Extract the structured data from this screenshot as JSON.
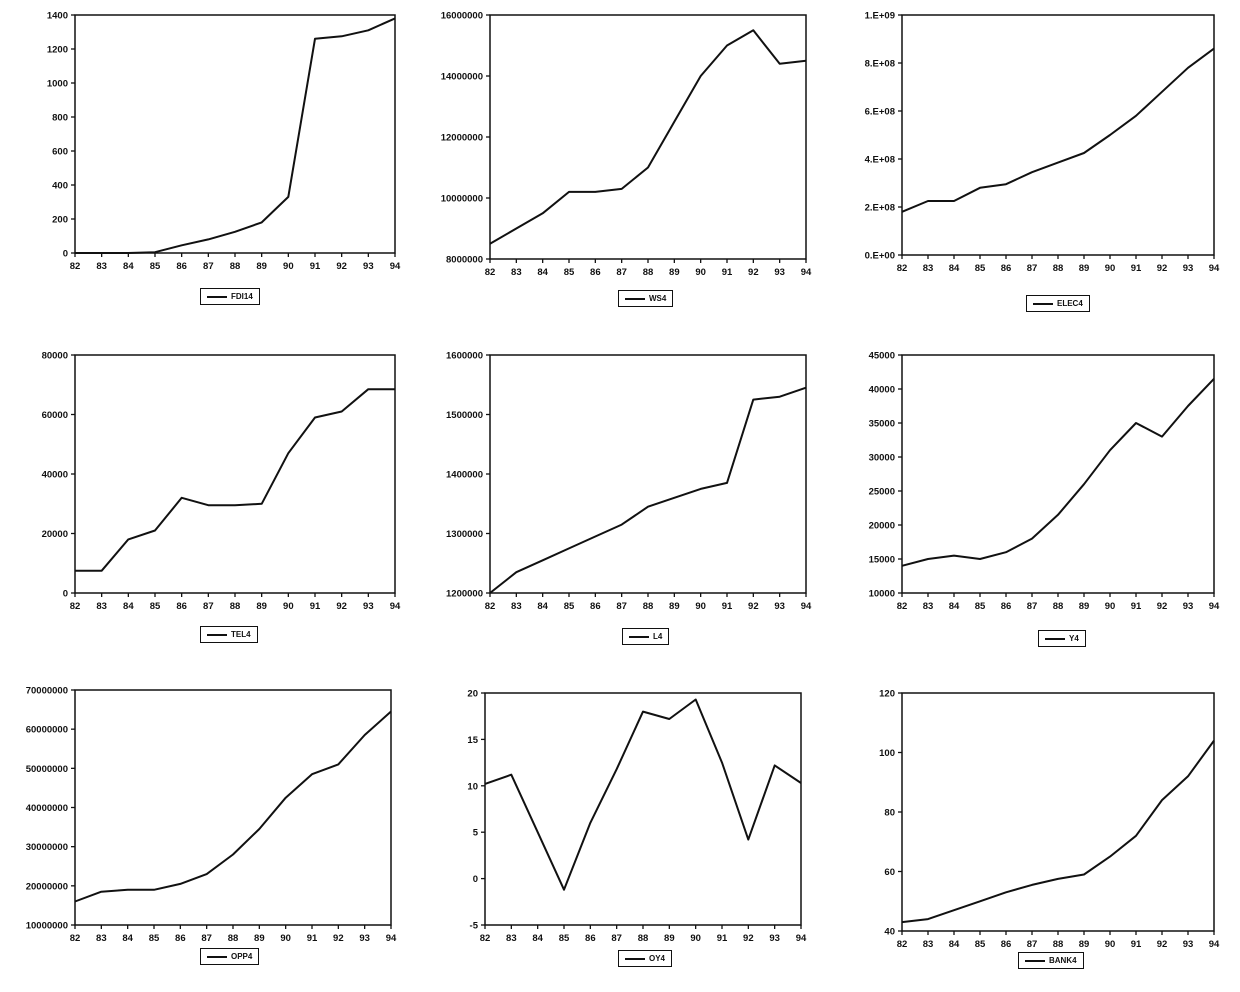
{
  "chart_data": [
    {
      "type": "line",
      "series": [
        {
          "name": "FDI14",
          "values": [
            0,
            0,
            0,
            5,
            45,
            80,
            125,
            180,
            330,
            1260,
            1275,
            1310,
            1380
          ]
        }
      ],
      "x": [
        "82",
        "83",
        "84",
        "85",
        "86",
        "87",
        "88",
        "89",
        "90",
        "91",
        "92",
        "93",
        "94"
      ],
      "ylim": [
        0,
        1400
      ],
      "yticks": [
        "0",
        "200",
        "400",
        "600",
        "800",
        "1000",
        "1200",
        "1400"
      ],
      "title": "",
      "xlabel": "",
      "ylabel": "",
      "legend": "bottom-left",
      "grid": false
    },
    {
      "type": "line",
      "series": [
        {
          "name": "WS4",
          "values": [
            8500000,
            9000000,
            9500000,
            10200000,
            10200000,
            10300000,
            11000000,
            12500000,
            14000000,
            15000000,
            15500000,
            14400000,
            14500000
          ]
        }
      ],
      "x": [
        "82",
        "83",
        "84",
        "85",
        "86",
        "87",
        "88",
        "89",
        "90",
        "91",
        "92",
        "93",
        "94"
      ],
      "ylim": [
        8000000,
        16000000
      ],
      "yticks": [
        "8000000",
        "10000000",
        "12000000",
        "14000000",
        "16000000"
      ],
      "title": "",
      "xlabel": "",
      "ylabel": "",
      "legend": "bottom-center",
      "grid": false
    },
    {
      "type": "line",
      "series": [
        {
          "name": "ELEC4",
          "values": [
            180000000,
            225000000,
            225000000,
            280000000,
            295000000,
            345000000,
            385000000,
            425000000,
            500000000,
            580000000,
            680000000,
            780000000,
            860000000
          ]
        }
      ],
      "x": [
        "82",
        "83",
        "84",
        "85",
        "86",
        "87",
        "88",
        "89",
        "90",
        "91",
        "92",
        "93",
        "94"
      ],
      "ylim": [
        0,
        1000000000
      ],
      "yticks": [
        "0.E+00",
        "2.E+08",
        "4.E+08",
        "6.E+08",
        "8.E+08",
        "1.E+09"
      ],
      "title": "",
      "xlabel": "",
      "ylabel": "",
      "legend": "bottom-center",
      "grid": false
    },
    {
      "type": "line",
      "series": [
        {
          "name": "TEL4",
          "values": [
            7500,
            7500,
            18000,
            21000,
            32000,
            29500,
            29500,
            30000,
            47000,
            59000,
            61000,
            68500,
            68500
          ]
        }
      ],
      "x": [
        "82",
        "83",
        "84",
        "85",
        "86",
        "87",
        "88",
        "89",
        "90",
        "91",
        "92",
        "93",
        "94"
      ],
      "ylim": [
        0,
        80000
      ],
      "yticks": [
        "0",
        "20000",
        "40000",
        "60000",
        "80000"
      ],
      "title": "",
      "xlabel": "",
      "ylabel": "",
      "legend": "bottom-center",
      "grid": false
    },
    {
      "type": "line",
      "series": [
        {
          "name": "L4",
          "values": [
            1200000,
            1235000,
            1255000,
            1275000,
            1295000,
            1315000,
            1345000,
            1360000,
            1375000,
            1385000,
            1525000,
            1530000,
            1545000
          ]
        }
      ],
      "x": [
        "82",
        "83",
        "84",
        "85",
        "86",
        "87",
        "88",
        "89",
        "90",
        "91",
        "92",
        "93",
        "94"
      ],
      "ylim": [
        1200000,
        1600000
      ],
      "yticks": [
        "1200000",
        "1300000",
        "1400000",
        "1500000",
        "1600000"
      ],
      "title": "",
      "xlabel": "",
      "ylabel": "",
      "legend": "bottom-center",
      "grid": false
    },
    {
      "type": "line",
      "series": [
        {
          "name": "Y4",
          "values": [
            14000,
            15000,
            15500,
            15000,
            16000,
            18000,
            21500,
            26000,
            31000,
            35000,
            33000,
            37500,
            41500
          ]
        }
      ],
      "x": [
        "82",
        "83",
        "84",
        "85",
        "86",
        "87",
        "88",
        "89",
        "90",
        "91",
        "92",
        "93",
        "94"
      ],
      "ylim": [
        10000,
        45000
      ],
      "yticks": [
        "10000",
        "15000",
        "20000",
        "25000",
        "30000",
        "35000",
        "40000",
        "45000"
      ],
      "title": "",
      "xlabel": "",
      "ylabel": "",
      "legend": "bottom-center",
      "grid": false
    },
    {
      "type": "line",
      "series": [
        {
          "name": "OPP4",
          "values": [
            16000000,
            18500000,
            19000000,
            19000000,
            20500000,
            23000000,
            28000000,
            34500000,
            42500000,
            48500000,
            51000000,
            58500000,
            64500000
          ]
        }
      ],
      "x": [
        "82",
        "83",
        "84",
        "85",
        "86",
        "87",
        "88",
        "89",
        "90",
        "91",
        "92",
        "93",
        "94"
      ],
      "ylim": [
        10000000,
        70000000
      ],
      "yticks": [
        "10000000",
        "20000000",
        "30000000",
        "40000000",
        "50000000",
        "60000000",
        "70000000"
      ],
      "title": "",
      "xlabel": "",
      "ylabel": "",
      "legend": "bottom-left",
      "grid": false
    },
    {
      "type": "line",
      "series": [
        {
          "name": "OY4",
          "values": [
            10.2,
            11.2,
            5,
            -1.2,
            6,
            11.8,
            18,
            17.2,
            19.3,
            12.5,
            4.2,
            12.2,
            10.3
          ]
        }
      ],
      "x": [
        "82",
        "83",
        "84",
        "85",
        "86",
        "87",
        "88",
        "89",
        "90",
        "91",
        "92",
        "93",
        "94"
      ],
      "ylim": [
        -5,
        20
      ],
      "yticks": [
        "-5",
        "0",
        "5",
        "10",
        "15",
        "20"
      ],
      "title": "",
      "xlabel": "",
      "ylabel": "",
      "legend": "bottom-center",
      "grid": false
    },
    {
      "type": "line",
      "series": [
        {
          "name": "BANK4",
          "values": [
            43,
            44,
            47,
            50,
            53,
            55.5,
            57.5,
            59,
            65,
            72,
            84,
            92,
            104
          ]
        }
      ],
      "x": [
        "82",
        "83",
        "84",
        "85",
        "86",
        "87",
        "88",
        "89",
        "90",
        "91",
        "92",
        "93",
        "94"
      ],
      "ylim": [
        40,
        120
      ],
      "yticks": [
        "40",
        "60",
        "80",
        "100",
        "120"
      ],
      "title": "",
      "xlabel": "",
      "ylabel": "",
      "legend": "bottom-center",
      "grid": false
    }
  ]
}
